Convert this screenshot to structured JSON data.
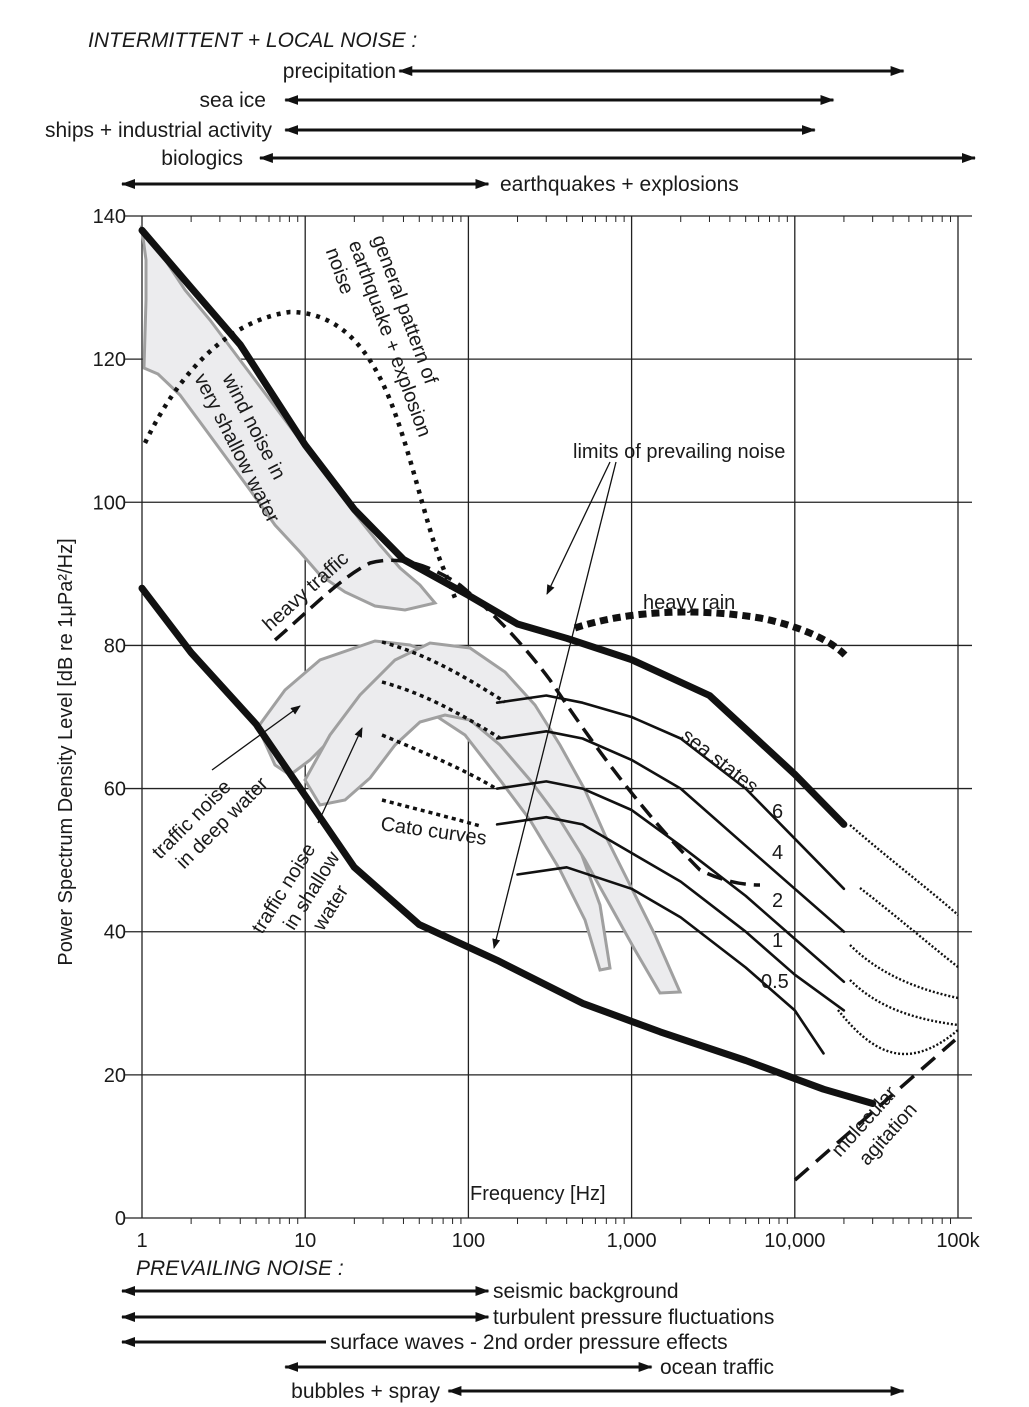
{
  "chart_data": {
    "type": "line",
    "title": "",
    "xlabel": "Frequency [Hz]",
    "ylabel": "Power Spectrum Density Level [dB re 1μPa²/Hz]",
    "x_scale": "log",
    "xlim": [
      1,
      100000
    ],
    "ylim": [
      0,
      140
    ],
    "x_ticks": [
      {
        "value": 1,
        "label": "1"
      },
      {
        "value": 10,
        "label": "10"
      },
      {
        "value": 100,
        "label": "100"
      },
      {
        "value": 1000,
        "label": "1,000"
      },
      {
        "value": 10000,
        "label": "10,000"
      },
      {
        "value": 100000,
        "label": "100k"
      }
    ],
    "y_ticks": [
      {
        "value": 0,
        "label": "0"
      },
      {
        "value": 20,
        "label": "20"
      },
      {
        "value": 40,
        "label": "40"
      },
      {
        "value": 60,
        "label": "60"
      },
      {
        "value": 80,
        "label": "80"
      },
      {
        "value": 100,
        "label": "100"
      },
      {
        "value": 120,
        "label": "120"
      },
      {
        "value": 140,
        "label": "140"
      }
    ],
    "grid": true,
    "intermittent_title": "INTERMITTENT + LOCAL NOISE :",
    "intermittent_ranges": [
      {
        "label": "precipitation",
        "from": 50,
        "to": 35000
      },
      {
        "label": "sea ice",
        "from": 10,
        "to": 13000
      },
      {
        "label": "ships + industrial activity",
        "from": 10,
        "to": 10000
      },
      {
        "label": "biologics",
        "from": 7,
        "to": 100000
      },
      {
        "label": "earthquakes + explosions",
        "from": 1,
        "to": 100
      }
    ],
    "prevailing_title": "PREVAILING NOISE :",
    "prevailing_ranges": [
      {
        "label": "seismic background",
        "from": 1,
        "to": 100
      },
      {
        "label": "turbulent pressure fluctuations",
        "from": 1,
        "to": 100
      },
      {
        "label": "surface waves - 2nd order pressure effects",
        "from": 1,
        "to": 30
      },
      {
        "label": "ocean traffic",
        "from": 10,
        "to": 1000
      },
      {
        "label": "bubbles + spray",
        "from": 100,
        "to": 35000
      }
    ],
    "series": [
      {
        "label": "upper limit of prevailing noise",
        "style": "thick",
        "points": [
          [
            1,
            138
          ],
          [
            2,
            130
          ],
          [
            4,
            122
          ],
          [
            10,
            108
          ],
          [
            20,
            99
          ],
          [
            40,
            92
          ],
          [
            100,
            87
          ],
          [
            200,
            83
          ],
          [
            400,
            81
          ],
          [
            1000,
            78
          ],
          [
            3000,
            73
          ],
          [
            10000,
            62
          ],
          [
            20000,
            55
          ]
        ]
      },
      {
        "label": "lower limit of prevailing noise",
        "style": "thick",
        "points": [
          [
            1,
            88
          ],
          [
            2,
            79
          ],
          [
            5,
            69
          ],
          [
            10,
            59
          ],
          [
            20,
            49
          ],
          [
            50,
            41
          ],
          [
            150,
            36
          ],
          [
            500,
            30
          ],
          [
            1500,
            26
          ],
          [
            5000,
            22
          ],
          [
            15000,
            18
          ],
          [
            30000,
            16
          ]
        ]
      },
      {
        "label": "sea state 6",
        "style": "thin",
        "points": [
          [
            150,
            72
          ],
          [
            300,
            73
          ],
          [
            500,
            72
          ],
          [
            1000,
            70
          ],
          [
            2000,
            67
          ],
          [
            5000,
            60
          ],
          [
            10000,
            53
          ],
          [
            20000,
            46
          ]
        ]
      },
      {
        "label": "sea state 4",
        "style": "thin",
        "points": [
          [
            150,
            67
          ],
          [
            300,
            68
          ],
          [
            500,
            67
          ],
          [
            1000,
            64
          ],
          [
            2000,
            60
          ],
          [
            5000,
            52
          ],
          [
            10000,
            46
          ],
          [
            20000,
            40
          ]
        ]
      },
      {
        "label": "sea state 2",
        "style": "thin",
        "points": [
          [
            150,
            60
          ],
          [
            300,
            61
          ],
          [
            500,
            60
          ],
          [
            1000,
            57
          ],
          [
            2000,
            52
          ],
          [
            5000,
            45
          ],
          [
            10000,
            39
          ],
          [
            20000,
            33
          ]
        ]
      },
      {
        "label": "sea state 1",
        "style": "thin",
        "points": [
          [
            150,
            55
          ],
          [
            300,
            56
          ],
          [
            500,
            55
          ],
          [
            1000,
            51
          ],
          [
            2000,
            47
          ],
          [
            5000,
            40
          ],
          [
            10000,
            34
          ],
          [
            20000,
            29
          ]
        ]
      },
      {
        "label": "sea state 0.5",
        "style": "thin",
        "points": [
          [
            200,
            48
          ],
          [
            400,
            49
          ],
          [
            1000,
            46
          ],
          [
            2000,
            42
          ],
          [
            5000,
            35
          ],
          [
            10000,
            29
          ],
          [
            15000,
            23
          ]
        ]
      }
    ],
    "annotations": {
      "wind_noise": "wind noise in very shallow water",
      "earthquake_pattern": "general pattern of earthquake + explosion noise",
      "heavy_traffic": "heavy traffic",
      "heavy_rain": "heavy rain",
      "limits": "limits of prevailing noise",
      "sea_states": "sea states",
      "sea_state_labels": [
        "6",
        "4",
        "2",
        "1",
        "0.5"
      ],
      "cato": "Cato curves",
      "traffic_deep": "traffic noise in deep water",
      "traffic_shallow": "traffic noise in shallow water",
      "molecular": "molecular agitation"
    }
  }
}
